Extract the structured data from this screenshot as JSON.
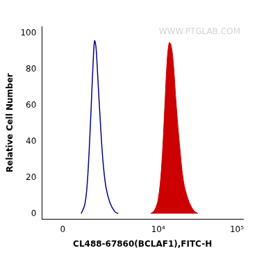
{
  "chart_data": {
    "type": "histogram",
    "x_label": "CL488-67860(BCLAF1),FITC-H",
    "y_label": "Relative Cell Number",
    "annotations": [
      "WWW.PTGLAB.COM"
    ],
    "log": "x",
    "grid": false,
    "xlim": [
      -800,
      120000
    ],
    "xticks": [
      0,
      {
        "value": 10000,
        "label": "10⁴"
      },
      {
        "value": 100000,
        "label": "10⁵"
      }
    ],
    "ylim": [
      -3,
      104
    ],
    "yticks": [
      0,
      20,
      40,
      60,
      80,
      100
    ],
    "series": [
      {
        "type": "line",
        "color": "#00008b",
        "x": [
          700,
          850,
          950,
          1050,
          1150,
          1250,
          1320,
          1400,
          1500,
          1650,
          1800,
          2000,
          2300,
          2700,
          3000
        ],
        "values": [
          0,
          5,
          15,
          35,
          60,
          85,
          96,
          92,
          75,
          50,
          30,
          15,
          6,
          1,
          0
        ]
      },
      {
        "type": "area",
        "color": "#cc0000",
        "x": [
          8000,
          9000,
          10000,
          11000,
          12000,
          13000,
          13800,
          14500,
          15500,
          17000,
          19000,
          21000,
          24000,
          28000,
          32000
        ],
        "values": [
          0,
          2,
          8,
          25,
          55,
          85,
          95,
          94,
          85,
          60,
          35,
          18,
          8,
          2,
          0
        ]
      }
    ]
  }
}
